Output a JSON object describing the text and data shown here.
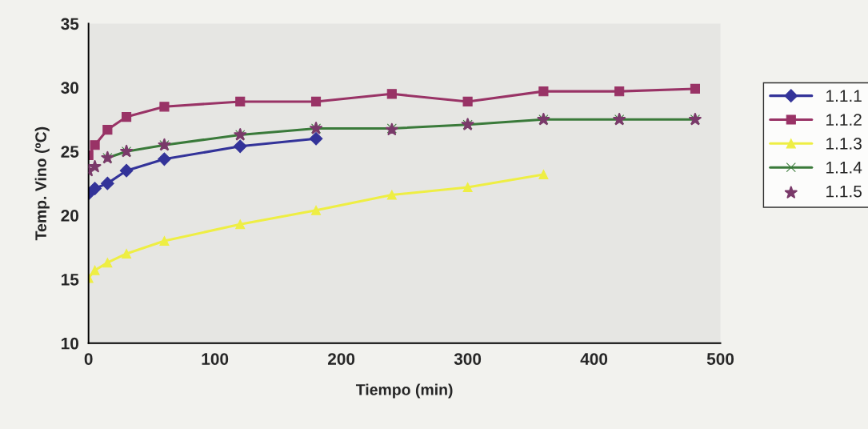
{
  "chart_data": {
    "type": "line",
    "xlabel": "Tiempo (min)",
    "ylabel": "Temp. Vino (ºC)",
    "xlim": [
      0,
      500
    ],
    "xticks": [
      0,
      100,
      200,
      300,
      400,
      500
    ],
    "ylim": [
      10,
      35
    ],
    "yticks": [
      10,
      15,
      20,
      25,
      30,
      35
    ],
    "grid": false,
    "legend": "right",
    "series": [
      {
        "name": "1.1.1",
        "color": "#333399",
        "marker": "diamond",
        "x": [
          0,
          5,
          15,
          30,
          60,
          120,
          180
        ],
        "values": [
          21.7,
          22.1,
          22.5,
          23.5,
          24.4,
          25.4,
          26.0
        ]
      },
      {
        "name": "1.1.2",
        "color": "#993366",
        "marker": "square",
        "x": [
          0,
          5,
          15,
          30,
          60,
          120,
          180,
          240,
          300,
          360,
          420,
          480
        ],
        "values": [
          24.7,
          25.5,
          26.7,
          27.7,
          28.5,
          28.9,
          28.9,
          29.5,
          28.9,
          29.7,
          29.7,
          29.9
        ]
      },
      {
        "name": "1.1.3",
        "color": "#eeee44",
        "marker": "triangle",
        "x": [
          0,
          5,
          15,
          30,
          60,
          120,
          180,
          240,
          300,
          360
        ],
        "values": [
          15.1,
          15.7,
          16.3,
          17.0,
          18.0,
          19.3,
          20.4,
          21.6,
          22.2,
          23.2
        ]
      },
      {
        "name": "1.1.4",
        "color": "#3a7a3a",
        "marker": "cross",
        "x": [
          15,
          30,
          60,
          120,
          180,
          240,
          300,
          360,
          420,
          480
        ],
        "values": [
          24.5,
          25.0,
          25.5,
          26.3,
          26.8,
          26.8,
          27.1,
          27.5,
          27.5,
          27.5
        ]
      },
      {
        "name": "1.1.5",
        "type": "scatter",
        "color": "#7a3a6a",
        "marker": "star",
        "x": [
          0,
          5,
          15,
          30,
          60,
          120,
          180,
          240,
          300,
          360,
          420,
          480
        ],
        "values": [
          23.5,
          23.8,
          24.5,
          25.0,
          25.5,
          26.3,
          26.8,
          26.7,
          27.1,
          27.5,
          27.5,
          27.5
        ]
      }
    ]
  }
}
